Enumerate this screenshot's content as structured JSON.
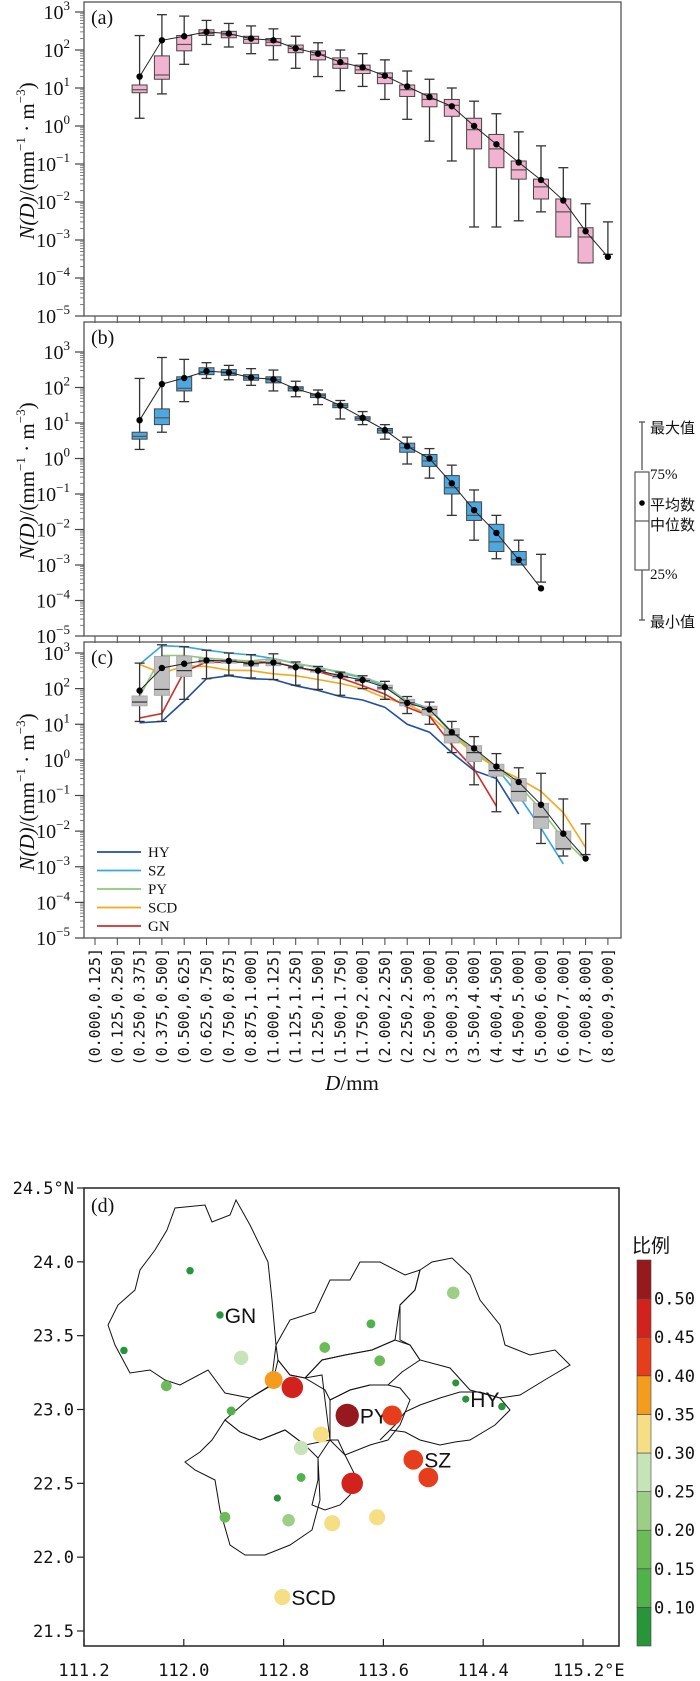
{
  "chart_data": [
    {
      "id": "a",
      "type": "box",
      "panel_label": "(a)",
      "ylabel": "N(D)/(mm⁻¹ · m⁻³)",
      "yscale": "log",
      "ylim": [
        1e-05,
        1000.0
      ],
      "yticks": [
        "10^3",
        "10^2",
        "10^1",
        "10^0",
        "10^-1",
        "10^-2",
        "10^-3",
        "10^-4",
        "10^-5"
      ],
      "box_color": "#f1b3cf",
      "first_bin": 2,
      "boxes": [
        {
          "min": 1.6,
          "q1": 7.5,
          "median": 9.0,
          "q3": 12,
          "max": 240,
          "mean": 20
        },
        {
          "min": 7,
          "q1": 17,
          "median": 22,
          "q3": 70,
          "max": 850,
          "mean": 180
        },
        {
          "min": 42,
          "q1": 95,
          "median": 140,
          "q3": 240,
          "max": 780,
          "mean": 230
        },
        {
          "min": 140,
          "q1": 240,
          "median": 270,
          "q3": 340,
          "max": 600,
          "mean": 300
        },
        {
          "min": 120,
          "q1": 210,
          "median": 250,
          "q3": 310,
          "max": 500,
          "mean": 270
        },
        {
          "min": 80,
          "q1": 150,
          "median": 190,
          "q3": 230,
          "max": 430,
          "mean": 200
        },
        {
          "min": 55,
          "q1": 130,
          "median": 160,
          "q3": 200,
          "max": 360,
          "mean": 180
        },
        {
          "min": 33,
          "q1": 85,
          "median": 110,
          "q3": 135,
          "max": 230,
          "mean": 110
        },
        {
          "min": 20,
          "q1": 55,
          "median": 75,
          "q3": 95,
          "max": 155,
          "mean": 80
        },
        {
          "min": 8.5,
          "q1": 33,
          "median": 42,
          "q3": 62,
          "max": 100,
          "mean": 48
        },
        {
          "min": 11,
          "q1": 24,
          "median": 30,
          "q3": 40,
          "max": 80,
          "mean": 35
        },
        {
          "min": 5,
          "q1": 13,
          "median": 19,
          "q3": 25,
          "max": 55,
          "mean": 21
        },
        {
          "min": 1.5,
          "q1": 6,
          "median": 9,
          "q3": 12,
          "max": 28,
          "mean": 11
        },
        {
          "min": 0.4,
          "q1": 3.2,
          "median": 5,
          "q3": 7,
          "max": 17,
          "mean": 5.8
        },
        {
          "min": 0.12,
          "q1": 1.8,
          "median": 3.5,
          "q3": 5,
          "max": 10,
          "mean": 3.3
        },
        {
          "min": 0.0022,
          "q1": 0.25,
          "median": 0.8,
          "q3": 1.6,
          "max": 4.5,
          "mean": 1.0
        },
        {
          "min": 0.0022,
          "q1": 0.08,
          "median": 0.25,
          "q3": 0.6,
          "max": 2.1,
          "mean": 0.33
        },
        {
          "min": 0.0032,
          "q1": 0.04,
          "median": 0.07,
          "q3": 0.12,
          "max": 0.7,
          "mean": 0.11
        },
        {
          "min": 0.0055,
          "q1": 0.012,
          "median": 0.025,
          "q3": 0.04,
          "max": 0.3,
          "mean": 0.038
        },
        {
          "min": 0.0013,
          "q1": 0.0012,
          "median": 0.0055,
          "q3": 0.012,
          "max": 0.08,
          "mean": 0.011
        },
        {
          "min": 0.00025,
          "q1": 0.00025,
          "median": 0.0012,
          "q3": 0.0021,
          "max": 0.009,
          "mean": 0.0017
        },
        {
          "min": 0.00042,
          "q1": 0.00042,
          "median": 0.00042,
          "q3": 0.00042,
          "max": 0.003,
          "mean": 0.00036
        }
      ]
    },
    {
      "id": "b",
      "type": "box",
      "panel_label": "(b)",
      "ylabel": "N(D)/(mm⁻¹ · m⁻³)",
      "yscale": "log",
      "ylim": [
        1e-05,
        1000.0
      ],
      "yticks": [
        "10^3",
        "10^2",
        "10^1",
        "10^0",
        "10^-1",
        "10^-2",
        "10^-3",
        "10^-4",
        "10^-5"
      ],
      "box_color": "#4ea8e0",
      "first_bin": 2,
      "boxes": [
        {
          "min": 1.8,
          "q1": 3.5,
          "median": 4.2,
          "q3": 5.5,
          "max": 180,
          "mean": 12
        },
        {
          "min": 5.5,
          "q1": 9,
          "median": 14,
          "q3": 25,
          "max": 700,
          "mean": 125
        },
        {
          "min": 40,
          "q1": 80,
          "median": 95,
          "q3": 200,
          "max": 620,
          "mean": 185
        },
        {
          "min": 180,
          "q1": 230,
          "median": 280,
          "q3": 360,
          "max": 500,
          "mean": 290
        },
        {
          "min": 165,
          "q1": 220,
          "median": 260,
          "q3": 320,
          "max": 420,
          "mean": 265
        },
        {
          "min": 115,
          "q1": 160,
          "median": 185,
          "q3": 230,
          "max": 340,
          "mean": 190
        },
        {
          "min": 80,
          "q1": 135,
          "median": 165,
          "q3": 200,
          "max": 310,
          "mean": 170
        },
        {
          "min": 55,
          "q1": 80,
          "median": 95,
          "q3": 105,
          "max": 150,
          "mean": 92
        },
        {
          "min": 33,
          "q1": 52,
          "median": 60,
          "q3": 66,
          "max": 85,
          "mean": 60
        },
        {
          "min": 13,
          "q1": 27,
          "median": 31,
          "q3": 35,
          "max": 43,
          "mean": 31
        },
        {
          "min": 9,
          "q1": 12,
          "median": 13.5,
          "q3": 15,
          "max": 21,
          "mean": 14
        },
        {
          "min": 3.5,
          "q1": 5.2,
          "median": 6.2,
          "q3": 7,
          "max": 9,
          "mean": 6.3
        },
        {
          "min": 0.7,
          "q1": 1.5,
          "median": 2.0,
          "q3": 2.7,
          "max": 4,
          "mean": 2.2
        },
        {
          "min": 0.28,
          "q1": 0.6,
          "median": 0.85,
          "q3": 1.3,
          "max": 1.9,
          "mean": 1.0
        },
        {
          "min": 0.025,
          "q1": 0.1,
          "median": 0.15,
          "q3": 0.33,
          "max": 0.65,
          "mean": 0.2
        },
        {
          "min": 0.005,
          "q1": 0.018,
          "median": 0.025,
          "q3": 0.06,
          "max": 0.13,
          "mean": 0.035
        },
        {
          "min": 0.0015,
          "q1": 0.0024,
          "median": 0.0045,
          "q3": 0.014,
          "max": 0.025,
          "mean": 0.008
        },
        {
          "min": 0.0015,
          "q1": 0.001,
          "median": 0.0014,
          "q3": 0.0024,
          "max": 0.005,
          "mean": 0.0014
        },
        {
          "min": 0.00033,
          "q1": 0.00033,
          "median": 0.00033,
          "q3": 0.00033,
          "max": 0.002,
          "mean": 0.00022
        }
      ]
    },
    {
      "id": "c",
      "type": "box+line",
      "panel_label": "(c)",
      "ylabel": "N(D)/(mm⁻¹ · m⁻³)",
      "yscale": "log",
      "ylim": [
        1e-05,
        1000.0
      ],
      "yticks": [
        "10^3",
        "10^2",
        "10^1",
        "10^0",
        "10^-1",
        "10^-2",
        "10^-3",
        "10^-4",
        "10^-5"
      ],
      "xlabel": "D/mm",
      "box_color": "#bfbfbf",
      "first_bin": 2,
      "boxes": [
        {
          "min": 12,
          "q1": 33,
          "median": 42,
          "q3": 62,
          "max": 520,
          "mean": 88
        },
        {
          "min": 12,
          "q1": 65,
          "median": 95,
          "q3": 800,
          "max": 1700,
          "mean": 380
        },
        {
          "min": 50,
          "q1": 220,
          "median": 320,
          "q3": 820,
          "max": 1500,
          "mean": 500
        },
        {
          "min": 190,
          "q1": 520,
          "median": 600,
          "q3": 700,
          "max": 1200,
          "mean": 620
        },
        {
          "min": 240,
          "q1": 520,
          "median": 590,
          "q3": 660,
          "max": 1000,
          "mean": 600
        },
        {
          "min": 200,
          "q1": 430,
          "median": 500,
          "q3": 560,
          "max": 900,
          "mean": 510
        },
        {
          "min": 180,
          "q1": 440,
          "median": 520,
          "q3": 650,
          "max": 950,
          "mean": 540
        },
        {
          "min": 125,
          "q1": 360,
          "median": 400,
          "q3": 440,
          "max": 560,
          "mean": 400
        },
        {
          "min": 95,
          "q1": 290,
          "median": 320,
          "q3": 350,
          "max": 420,
          "mean": 320
        },
        {
          "min": 65,
          "q1": 200,
          "median": 220,
          "q3": 260,
          "max": 290,
          "mean": 230
        },
        {
          "min": 100,
          "q1": 155,
          "median": 170,
          "q3": 190,
          "max": 230,
          "mean": 175
        },
        {
          "min": 50,
          "q1": 95,
          "median": 105,
          "q3": 125,
          "max": 160,
          "mean": 110
        },
        {
          "min": 20,
          "q1": 33,
          "median": 40,
          "q3": 50,
          "max": 60,
          "mean": 40
        },
        {
          "min": 10,
          "q1": 18,
          "median": 26,
          "q3": 32,
          "max": 42,
          "mean": 26
        },
        {
          "min": 1.6,
          "q1": 3,
          "median": 5,
          "q3": 7.5,
          "max": 12,
          "mean": 6
        },
        {
          "min": 0.2,
          "q1": 0.9,
          "median": 1.6,
          "q3": 2.5,
          "max": 4.5,
          "mean": 2.1
        },
        {
          "min": 0.035,
          "q1": 0.35,
          "median": 0.5,
          "q3": 0.75,
          "max": 1.5,
          "mean": 0.65
        },
        {
          "min": 0.14,
          "q1": 0.07,
          "median": 0.13,
          "q3": 0.3,
          "max": 0.6,
          "mean": 0.24
        },
        {
          "min": 0.0045,
          "q1": 0.012,
          "median": 0.025,
          "q3": 0.06,
          "max": 0.42,
          "mean": 0.055
        },
        {
          "min": 0.002,
          "q1": 0.003,
          "median": 0.0032,
          "q3": 0.01,
          "max": 0.08,
          "mean": 0.0085
        },
        {
          "min": 0.0022,
          "q1": 0.0022,
          "median": 0.0022,
          "q3": 0.0022,
          "max": 0.016,
          "mean": 0.0017
        }
      ],
      "series": [
        {
          "name": "HY",
          "color": "#1f4fa0",
          "values": [
            11,
            12,
            45,
            190,
            230,
            190,
            180,
            120,
            90,
            60,
            48,
            30,
            10,
            6,
            1.6,
            0.5,
            0.3,
            0.03,
            null,
            null,
            null
          ]
        },
        {
          "name": "SZ",
          "color": "#35a7e4",
          "values": [
            480,
            1600,
            1500,
            1200,
            1000,
            880,
            700,
            500,
            400,
            280,
            200,
            120,
            45,
            28,
            6,
            1.7,
            0.6,
            0.1,
            0.012,
            0.0012,
            null
          ]
        },
        {
          "name": "PY",
          "color": "#8cc97a",
          "values": [
            60,
            850,
            850,
            720,
            640,
            600,
            700,
            520,
            380,
            300,
            210,
            130,
            42,
            27,
            5.5,
            1.8,
            0.6,
            0.2,
            0.04,
            0.006,
            0.0015
          ]
        },
        {
          "name": "SCD",
          "color": "#f5a81b",
          "values": [
            480,
            270,
            430,
            420,
            330,
            320,
            260,
            230,
            180,
            140,
            100,
            55,
            36,
            18,
            5,
            1.5,
            0.6,
            0.3,
            0.13,
            0.033,
            0.0035
          ]
        },
        {
          "name": "GN",
          "color": "#d42b2a",
          "values": [
            15,
            20,
            300,
            560,
            540,
            560,
            560,
            400,
            300,
            200,
            120,
            70,
            30,
            17,
            2.6,
            0.55,
            0.05,
            null,
            null,
            null,
            null
          ]
        }
      ]
    },
    {
      "id": "d",
      "type": "scatter-map",
      "panel_label": "(d)",
      "xlim": [
        111.2,
        115.2
      ],
      "ylim": [
        21.5,
        24.5
      ],
      "xticks": [
        "111.2",
        "112.0",
        "112.8",
        "113.6",
        "114.4",
        "115.2°E"
      ],
      "yticks": [
        "24.5°N",
        "24.0",
        "23.5",
        "23.0",
        "22.5",
        "22.0",
        "21.5"
      ],
      "colorbar_title": "比例",
      "colorbar_ticks": [
        "0.50",
        "0.45",
        "0.40",
        "0.35",
        "0.30",
        "0.25",
        "0.20",
        "0.15",
        "0.10"
      ],
      "colorbar_colors": [
        "#28953a",
        "#4fb24a",
        "#6dbb58",
        "#9ccf85",
        "#c7e3b8",
        "#f6de84",
        "#f39c1d",
        "#e63d1c",
        "#d2221e",
        "#95191d"
      ],
      "points": [
        {
          "lon": 112.05,
          "lat": 23.94,
          "value": 0.08
        },
        {
          "lon": 112.29,
          "lat": 23.64,
          "value": 0.08,
          "label": "GN"
        },
        {
          "lon": 111.52,
          "lat": 23.4,
          "value": 0.08
        },
        {
          "lon": 111.86,
          "lat": 23.16,
          "value": 0.17
        },
        {
          "lon": 112.46,
          "lat": 23.35,
          "value": 0.27
        },
        {
          "lon": 112.38,
          "lat": 22.99,
          "value": 0.12
        },
        {
          "lon": 112.72,
          "lat": 23.2,
          "value": 0.37
        },
        {
          "lon": 112.87,
          "lat": 23.15,
          "value": 0.47
        },
        {
          "lon": 113.13,
          "lat": 23.42,
          "value": 0.17
        },
        {
          "lon": 113.5,
          "lat": 23.58,
          "value": 0.12
        },
        {
          "lon": 113.57,
          "lat": 23.33,
          "value": 0.17
        },
        {
          "lon": 114.16,
          "lat": 23.79,
          "value": 0.22
        },
        {
          "lon": 114.18,
          "lat": 23.18,
          "value": 0.07
        },
        {
          "lon": 114.26,
          "lat": 23.07,
          "value": 0.07,
          "label": "HY"
        },
        {
          "lon": 114.55,
          "lat": 23.02,
          "value": 0.08
        },
        {
          "lon": 113.31,
          "lat": 22.96,
          "value": 0.52,
          "label": "PY"
        },
        {
          "lon": 113.67,
          "lat": 22.96,
          "value": 0.42
        },
        {
          "lon": 113.1,
          "lat": 22.83,
          "value": 0.32
        },
        {
          "lon": 112.94,
          "lat": 22.74,
          "value": 0.27
        },
        {
          "lon": 112.94,
          "lat": 22.54,
          "value": 0.12
        },
        {
          "lon": 113.35,
          "lat": 22.5,
          "value": 0.47
        },
        {
          "lon": 113.84,
          "lat": 22.66,
          "value": 0.42,
          "label": "SZ"
        },
        {
          "lon": 113.96,
          "lat": 22.54,
          "value": 0.42
        },
        {
          "lon": 112.75,
          "lat": 22.4,
          "value": 0.07
        },
        {
          "lon": 112.33,
          "lat": 22.27,
          "value": 0.17
        },
        {
          "lon": 112.84,
          "lat": 22.25,
          "value": 0.22
        },
        {
          "lon": 113.19,
          "lat": 22.23,
          "value": 0.32
        },
        {
          "lon": 113.55,
          "lat": 22.27,
          "value": 0.32
        },
        {
          "lon": 112.79,
          "lat": 21.73,
          "value": 0.32,
          "label": "SCD"
        }
      ]
    }
  ],
  "x_categories": [
    "(0.000,0.125]",
    "(0.125,0.250]",
    "(0.250,0.375]",
    "(0.375,0.500]",
    "(0.500,0.625]",
    "(0.625,0.750]",
    "(0.750,0.875]",
    "(0.875,1.000]",
    "(1.000,1.125]",
    "(1.125,1.250]",
    "(1.250,1.500]",
    "(1.500,1.750]",
    "(1.750,2.000]",
    "(2.000,2.250]",
    "(2.250,2.500]",
    "(2.500,3.000]",
    "(3.000,3.500]",
    "(3.500,4.000]",
    "(4.000,4.500]",
    "(4.500,5.000]",
    "(5.000,6.000]",
    "(6.000,7.000]",
    "(7.000,8.000]",
    "(8.000,9.000]"
  ],
  "box_key": {
    "max": "最大值",
    "q3": "75%",
    "mean": "平均数",
    "median": "中位数",
    "q1": "25%",
    "min": "最小值"
  },
  "axis_text": {
    "ylabel_main": "N(D)",
    "ylabel_units": "/(mm",
    "ylabel_units2": " · m",
    "ylabel_close": ")",
    "xlabel_d": "D",
    "xlabel_mm": "/mm",
    "pow10_base": "10"
  }
}
